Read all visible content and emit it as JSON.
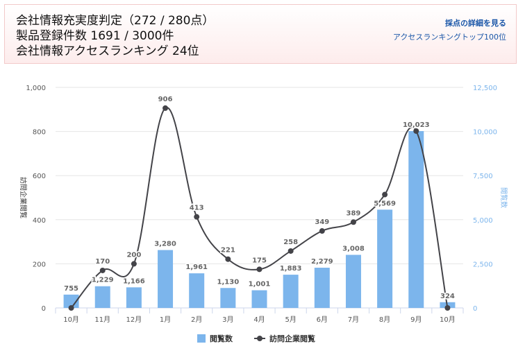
{
  "header": {
    "line1": "会社情報充実度判定（272 / 280点）",
    "line2": "製品登録件数 1691 / 3000件",
    "line3": "会社情報アクセスランキング 24位",
    "link_detail": "採点の詳細を見る",
    "link_ranking": "アクセスランキングトップ100位"
  },
  "colors": {
    "bar": "#7cb5ec",
    "line": "#434348",
    "grid": "#e6e6e6",
    "right_axis": "#7cb5ec"
  },
  "chart_data": {
    "type": "bar",
    "categories": [
      "10月",
      "11月",
      "12月",
      "1月",
      "2月",
      "3月",
      "4月",
      "5月",
      "6月",
      "7月",
      "8月",
      "9月",
      "10月"
    ],
    "series": [
      {
        "name": "閲覧数",
        "type": "bar",
        "axis": "right",
        "values": [
          755,
          1229,
          1166,
          3280,
          1961,
          1130,
          1001,
          1883,
          2279,
          3008,
          5569,
          10023,
          324
        ]
      },
      {
        "name": "訪問企業閲覧",
        "type": "line",
        "axis": "left",
        "values": [
          0,
          170,
          200,
          906,
          413,
          221,
          175,
          258,
          349,
          389,
          514,
          802,
          0
        ],
        "labels": [
          "",
          "170",
          "200",
          "906",
          "413",
          "221",
          "175",
          "258",
          "349",
          "389",
          "",
          "",
          ""
        ]
      }
    ],
    "bar_labels": [
      "755",
      "1,229",
      "1,166",
      "3,280",
      "1,961",
      "1,130",
      "1,001",
      "1,883",
      "2,279",
      "3,008",
      "5,569",
      "10,023",
      "324"
    ],
    "y_left": {
      "label": "訪問企業閲覧",
      "min": 0,
      "max": 1000,
      "ticks": [
        "0",
        "200",
        "400",
        "600",
        "800",
        "1,000"
      ]
    },
    "y_right": {
      "label": "閲覧数",
      "min": 0,
      "max": 12500,
      "ticks": [
        "0",
        "2,500",
        "5,000",
        "7,500",
        "10,000",
        "12,500"
      ]
    },
    "legend": {
      "position": "bottom",
      "items": [
        "閲覧数",
        "訪問企業閲覧"
      ]
    }
  }
}
